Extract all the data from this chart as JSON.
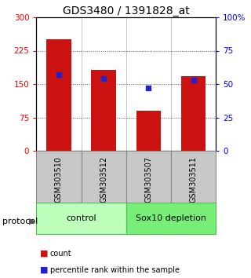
{
  "title": "GDS3480 / 1391828_at",
  "samples": [
    "GSM303510",
    "GSM303512",
    "GSM303507",
    "GSM303511"
  ],
  "counts": [
    250,
    182,
    90,
    168
  ],
  "percentiles": [
    57,
    54,
    47,
    53
  ],
  "left_ylim": [
    0,
    300
  ],
  "right_ylim": [
    0,
    100
  ],
  "left_yticks": [
    0,
    75,
    150,
    225,
    300
  ],
  "right_yticks": [
    0,
    25,
    50,
    75,
    100
  ],
  "right_yticklabels": [
    "0",
    "25",
    "50",
    "75",
    "100%"
  ],
  "bar_color": "#cc1111",
  "dot_color": "#2222cc",
  "groups": [
    {
      "label": "control",
      "indices": [
        0,
        1
      ],
      "color": "#bbffbb"
    },
    {
      "label": "Sox10 depletion",
      "indices": [
        2,
        3
      ],
      "color": "#77ee77"
    }
  ],
  "protocol_label": "protocol",
  "legend_count": "count",
  "legend_pct": "percentile rank within the sample",
  "bar_width": 0.55,
  "sample_box_color": "#c8c8c8",
  "sample_box_edge": "#888888"
}
